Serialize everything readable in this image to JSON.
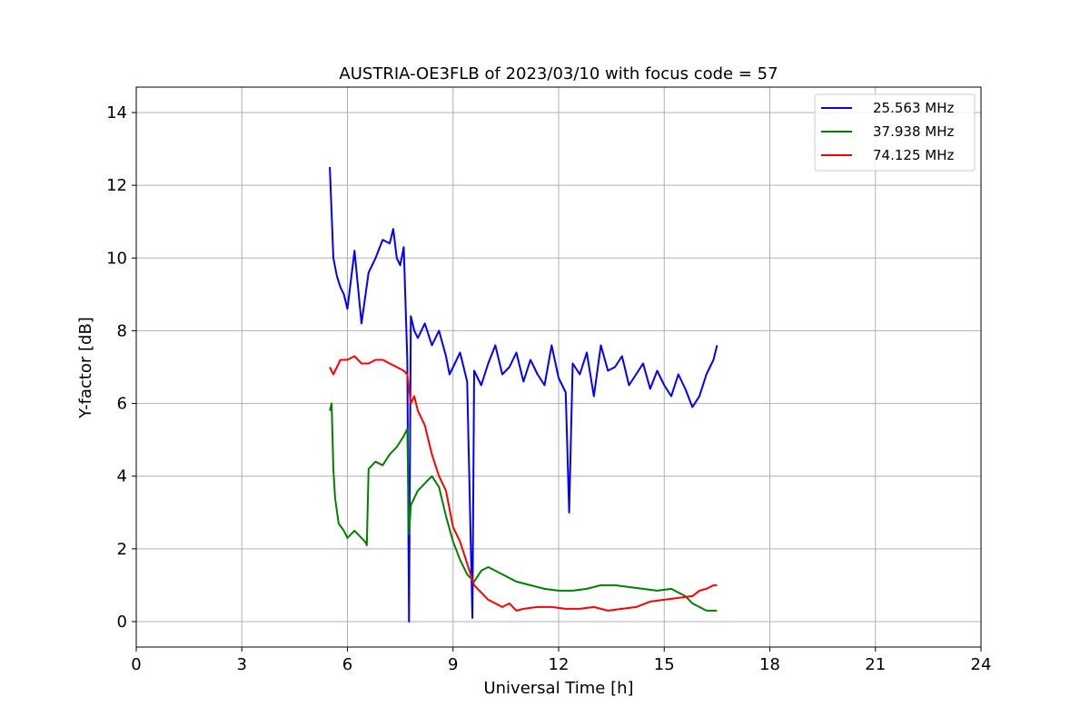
{
  "chart_data": {
    "type": "line",
    "title": "AUSTRIA-OE3FLB of 2023/03/10 with focus code = 57",
    "xlabel": "Universal Time [h]",
    "ylabel": "Y-factor [dB]",
    "xlim": [
      0,
      24
    ],
    "ylim": [
      -0.7,
      14.7
    ],
    "xticks": [
      0,
      3,
      6,
      9,
      12,
      15,
      18,
      21,
      24
    ],
    "yticks": [
      0,
      2,
      4,
      6,
      8,
      10,
      12,
      14
    ],
    "xtick_labels": [
      "0",
      "3",
      "6",
      "9",
      "12",
      "15",
      "18",
      "21",
      "24"
    ],
    "ytick_labels": [
      "0",
      "2",
      "4",
      "6",
      "8",
      "10",
      "12",
      "14"
    ],
    "grid": true,
    "legend_position": "top-right",
    "series": [
      {
        "name": "25.563 MHz",
        "color": "#0000ff",
        "x": [
          5.5,
          5.6,
          5.7,
          5.8,
          5.9,
          6.0,
          6.2,
          6.4,
          6.6,
          6.8,
          7.0,
          7.2,
          7.3,
          7.4,
          7.5,
          7.6,
          7.7,
          7.75,
          7.8,
          7.9,
          8.0,
          8.2,
          8.4,
          8.6,
          8.8,
          8.9,
          9.0,
          9.2,
          9.4,
          9.55,
          9.6,
          9.8,
          10.0,
          10.2,
          10.4,
          10.6,
          10.8,
          11.0,
          11.2,
          11.4,
          11.6,
          11.8,
          12.0,
          12.2,
          12.3,
          12.4,
          12.6,
          12.8,
          13.0,
          13.2,
          13.4,
          13.6,
          13.8,
          14.0,
          14.2,
          14.4,
          14.6,
          14.8,
          15.0,
          15.2,
          15.4,
          15.6,
          15.8,
          16.0,
          16.2,
          16.4,
          16.5
        ],
        "y": [
          12.5,
          10.0,
          9.5,
          9.2,
          9.0,
          8.6,
          10.2,
          8.2,
          9.6,
          10.0,
          10.5,
          10.4,
          10.8,
          10.0,
          9.8,
          10.3,
          7.2,
          0.0,
          8.4,
          8.0,
          7.8,
          8.2,
          7.6,
          8.0,
          7.3,
          6.8,
          7.0,
          7.4,
          6.6,
          0.1,
          6.9,
          6.5,
          7.1,
          7.6,
          6.8,
          7.0,
          7.4,
          6.6,
          7.2,
          6.8,
          6.5,
          7.6,
          6.7,
          6.3,
          3.0,
          7.1,
          6.8,
          7.4,
          6.2,
          7.6,
          6.9,
          7.0,
          7.3,
          6.5,
          6.8,
          7.1,
          6.4,
          6.9,
          6.5,
          6.2,
          6.8,
          6.4,
          5.9,
          6.2,
          6.8,
          7.2,
          7.6
        ]
      },
      {
        "name": "37.938 MHz",
        "color": "#008000",
        "x": [
          5.5,
          5.55,
          5.6,
          5.65,
          5.75,
          5.9,
          6.0,
          6.2,
          6.4,
          6.5,
          6.55,
          6.6,
          6.8,
          7.0,
          7.2,
          7.4,
          7.6,
          7.7,
          7.75,
          7.8,
          8.0,
          8.2,
          8.4,
          8.6,
          8.8,
          9.0,
          9.2,
          9.4,
          9.6,
          9.8,
          10.0,
          10.4,
          10.8,
          11.2,
          11.6,
          12.0,
          12.4,
          12.8,
          13.2,
          13.6,
          14.0,
          14.4,
          14.8,
          15.2,
          15.6,
          15.8,
          16.0,
          16.2,
          16.4,
          16.5
        ],
        "y": [
          5.8,
          6.0,
          4.2,
          3.4,
          2.7,
          2.5,
          2.3,
          2.5,
          2.3,
          2.2,
          2.1,
          4.2,
          4.4,
          4.3,
          4.6,
          4.8,
          5.1,
          5.3,
          2.4,
          3.2,
          3.6,
          3.8,
          4.0,
          3.7,
          2.9,
          2.2,
          1.7,
          1.3,
          1.1,
          1.4,
          1.5,
          1.3,
          1.1,
          1.0,
          0.9,
          0.85,
          0.85,
          0.9,
          1.0,
          1.0,
          0.95,
          0.9,
          0.85,
          0.9,
          0.7,
          0.5,
          0.4,
          0.3,
          0.3,
          0.3
        ]
      },
      {
        "name": "74.125 MHz",
        "color": "#ff0000",
        "x": [
          5.5,
          5.6,
          5.8,
          6.0,
          6.2,
          6.4,
          6.6,
          6.8,
          7.0,
          7.2,
          7.4,
          7.6,
          7.7,
          7.8,
          7.9,
          8.0,
          8.2,
          8.4,
          8.6,
          8.8,
          9.0,
          9.2,
          9.4,
          9.6,
          9.8,
          10.0,
          10.2,
          10.4,
          10.6,
          10.8,
          11.0,
          11.4,
          11.8,
          12.2,
          12.6,
          13.0,
          13.4,
          13.8,
          14.2,
          14.6,
          15.0,
          15.4,
          15.8,
          16.0,
          16.2,
          16.4,
          16.5
        ],
        "y": [
          7.0,
          6.8,
          7.2,
          7.2,
          7.3,
          7.1,
          7.1,
          7.2,
          7.2,
          7.1,
          7.0,
          6.9,
          6.8,
          6.0,
          6.2,
          5.8,
          5.4,
          4.6,
          4.0,
          3.6,
          2.6,
          2.2,
          1.6,
          1.0,
          0.8,
          0.6,
          0.5,
          0.4,
          0.5,
          0.3,
          0.35,
          0.4,
          0.4,
          0.35,
          0.35,
          0.4,
          0.3,
          0.35,
          0.4,
          0.55,
          0.6,
          0.65,
          0.7,
          0.85,
          0.9,
          1.0,
          1.0
        ]
      }
    ]
  }
}
